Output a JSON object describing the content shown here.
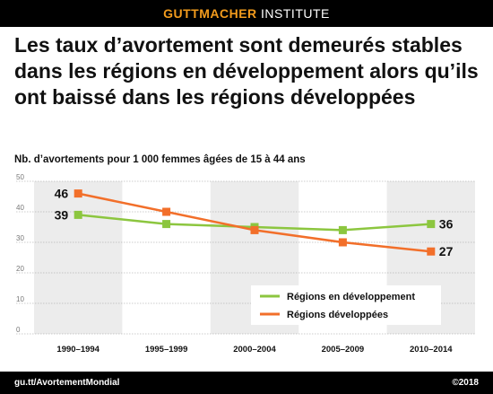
{
  "header": {
    "brand_bold": "GUTTMACHER",
    "brand_regular": " INSTITUTE"
  },
  "title": "Les taux d’avortement sont demeurés stables dans les régions en développement alors qu’ils ont baissé dans les régions développées",
  "footer": {
    "url": "gu.tt/AvortementMondial",
    "copyright": "©2018"
  },
  "colors": {
    "developing": "#8cc63f",
    "developed": "#f26f2a",
    "band": "#ececec",
    "accent": "#f29b1d"
  },
  "chart_data": {
    "type": "line",
    "ylabel": "Nb. d’avortements pour 1 000 femmes âgées de 15 à 44 ans",
    "xlabel": "",
    "categories": [
      "1990–1994",
      "1995–1999",
      "2000–2004",
      "2005–2009",
      "2010–2014"
    ],
    "ylim": [
      0,
      50
    ],
    "yticks": [
      0,
      10,
      20,
      30,
      40,
      50
    ],
    "series": [
      {
        "name": "Régions en développement",
        "values": [
          39,
          36,
          35,
          34,
          36
        ],
        "color": "#8cc63f",
        "start_label": "39",
        "end_label": "36"
      },
      {
        "name": "Régions développées",
        "values": [
          46,
          40,
          34,
          30,
          27
        ],
        "color": "#f26f2a",
        "start_label": "46",
        "end_label": "27"
      }
    ],
    "legend": "bottom-right",
    "grid": true
  }
}
